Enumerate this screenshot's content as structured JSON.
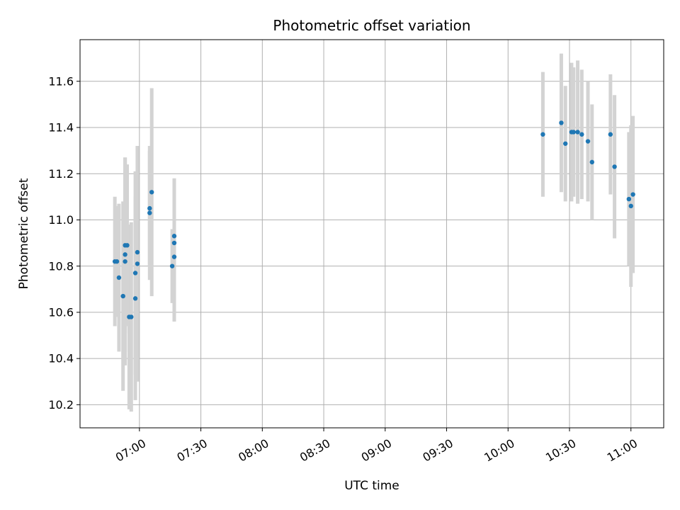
{
  "chart_data": {
    "type": "scatter",
    "title": "Photometric offset variation",
    "xlabel": "UTC time",
    "ylabel": "Photometric offset",
    "x_ticks": [
      "07:00",
      "07:30",
      "08:00",
      "08:30",
      "09:00",
      "09:30",
      "10:00",
      "10:30",
      "11:00"
    ],
    "y_ticks": [
      "10.2",
      "10.4",
      "10.6",
      "10.8",
      "11.0",
      "11.2",
      "11.4",
      "11.6"
    ],
    "xlim": [
      "06:31",
      "11:16"
    ],
    "ylim": [
      10.1,
      11.78
    ],
    "grid": true,
    "colors": {
      "points": "#1f77b4",
      "errorbars": "#d3d3d3",
      "grid": "#b0b0b0"
    },
    "points": [
      {
        "x": "06:48",
        "y": 10.82,
        "err": 0.28
      },
      {
        "x": "06:49",
        "y": 10.82,
        "err": 0.24
      },
      {
        "x": "06:50",
        "y": 10.75,
        "err": 0.32
      },
      {
        "x": "06:52",
        "y": 10.67,
        "err": 0.41
      },
      {
        "x": "06:53",
        "y": 10.82,
        "err": 0.45
      },
      {
        "x": "06:53",
        "y": 10.85,
        "err": 0.42
      },
      {
        "x": "06:53",
        "y": 10.89,
        "err": 0.38
      },
      {
        "x": "06:54",
        "y": 10.89,
        "err": 0.35
      },
      {
        "x": "06:55",
        "y": 10.58,
        "err": 0.4
      },
      {
        "x": "06:56",
        "y": 10.58,
        "err": 0.41
      },
      {
        "x": "06:58",
        "y": 10.77,
        "err": 0.44
      },
      {
        "x": "06:58",
        "y": 10.66,
        "err": 0.44
      },
      {
        "x": "06:59",
        "y": 10.81,
        "err": 0.51
      },
      {
        "x": "06:59",
        "y": 10.86,
        "err": 0.46
      },
      {
        "x": "07:05",
        "y": 11.05,
        "err": 0.25
      },
      {
        "x": "07:05",
        "y": 11.03,
        "err": 0.29
      },
      {
        "x": "07:06",
        "y": 11.12,
        "err": 0.45
      },
      {
        "x": "07:16",
        "y": 10.8,
        "err": 0.16
      },
      {
        "x": "07:17",
        "y": 10.84,
        "err": 0.28
      },
      {
        "x": "07:17",
        "y": 10.9,
        "err": 0.22
      },
      {
        "x": "07:17",
        "y": 10.93,
        "err": 0.25
      },
      {
        "x": "10:17",
        "y": 11.37,
        "err": 0.27
      },
      {
        "x": "10:26",
        "y": 11.42,
        "err": 0.3
      },
      {
        "x": "10:28",
        "y": 11.33,
        "err": 0.25
      },
      {
        "x": "10:31",
        "y": 11.38,
        "err": 0.3
      },
      {
        "x": "10:32",
        "y": 11.38,
        "err": 0.28
      },
      {
        "x": "10:34",
        "y": 11.38,
        "err": 0.31
      },
      {
        "x": "10:36",
        "y": 11.37,
        "err": 0.28
      },
      {
        "x": "10:39",
        "y": 11.34,
        "err": 0.26
      },
      {
        "x": "10:41",
        "y": 11.25,
        "err": 0.25
      },
      {
        "x": "10:50",
        "y": 11.37,
        "err": 0.26
      },
      {
        "x": "10:52",
        "y": 11.23,
        "err": 0.31
      },
      {
        "x": "10:59",
        "y": 11.09,
        "err": 0.29
      },
      {
        "x": "11:00",
        "y": 11.06,
        "err": 0.35
      },
      {
        "x": "11:01",
        "y": 11.11,
        "err": 0.34
      }
    ]
  }
}
